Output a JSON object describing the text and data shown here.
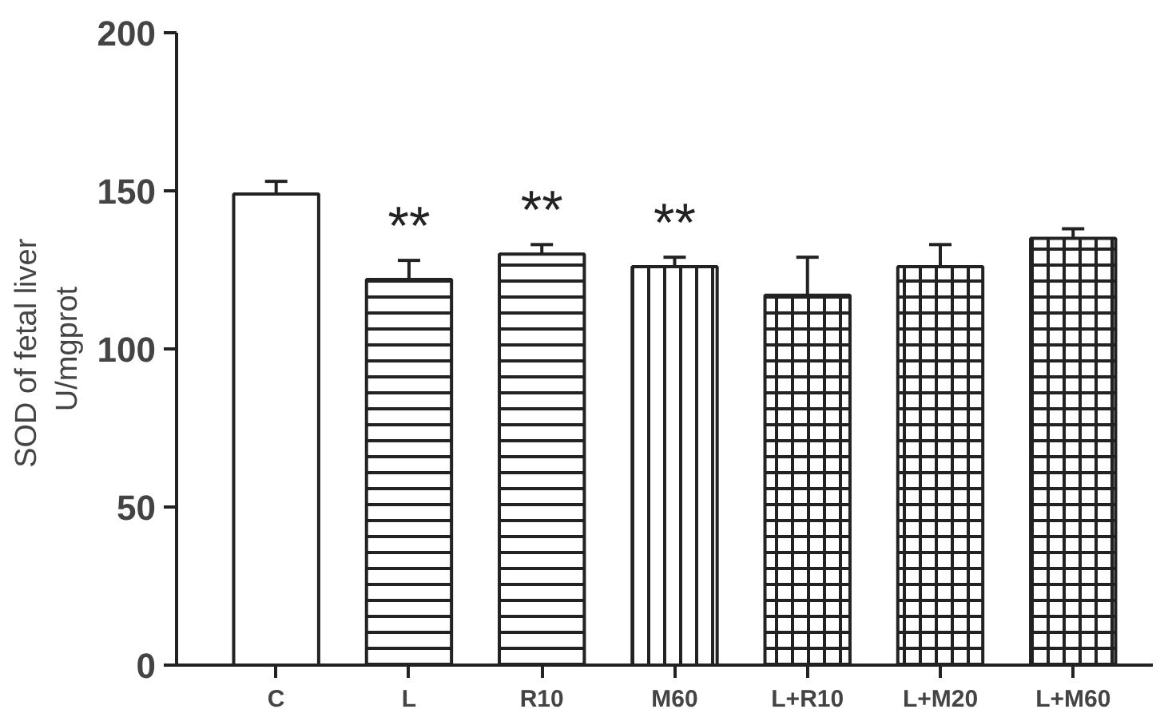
{
  "chart_data": {
    "type": "bar",
    "ylabel": "SOD of  fetal liver\nU/mgprot",
    "categories": [
      "C",
      "L",
      "R10",
      "M60",
      "L+R10",
      "L+M20",
      "L+M60"
    ],
    "values": [
      149,
      122,
      130,
      126,
      117,
      126,
      135
    ],
    "errors": [
      4,
      6,
      3,
      3,
      12,
      7,
      3
    ],
    "color": "#ffffff",
    "ylim": [
      0,
      200
    ],
    "yticks": [
      0,
      50,
      100,
      150,
      200
    ],
    "grid": false,
    "annotations": [
      {
        "text": "**",
        "x": "L",
        "y": 122
      },
      {
        "text": "**",
        "x": "R10",
        "y": 130
      },
      {
        "text": "**",
        "x": "M60",
        "y": 126
      }
    ]
  }
}
